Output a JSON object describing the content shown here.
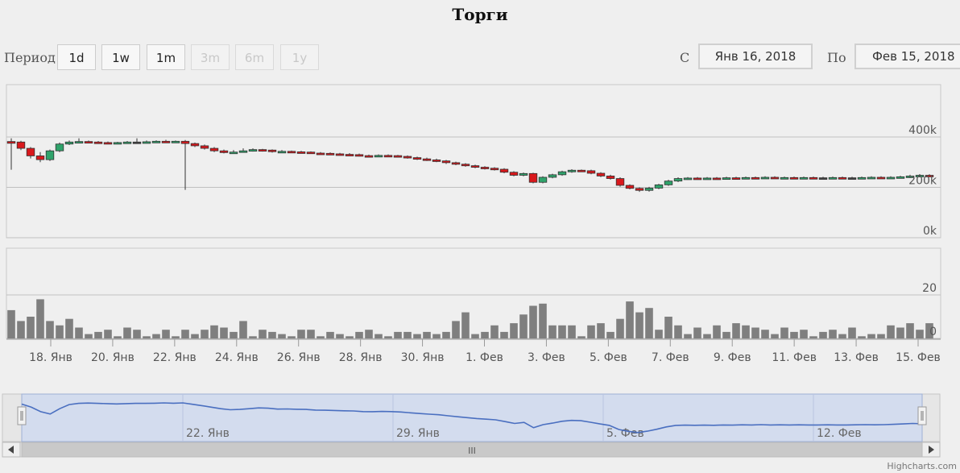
{
  "title": "Торги",
  "range_selector": {
    "label": "Период",
    "buttons": [
      {
        "label": "1d",
        "enabled": true
      },
      {
        "label": "1w",
        "enabled": true
      },
      {
        "label": "1m",
        "enabled": true
      },
      {
        "label": "3m",
        "enabled": false
      },
      {
        "label": "6m",
        "enabled": false
      },
      {
        "label": "1y",
        "enabled": false
      }
    ],
    "from_label": "С",
    "from_value": "Янв 16, 2018",
    "to_label": "По",
    "to_value": "Фев 15, 2018"
  },
  "credits": "Highcharts.com",
  "chart_data": {
    "type": "candlestick",
    "price_axis": {
      "ticks": [
        "0k",
        "200k",
        "400k"
      ],
      "range": [
        0,
        400000
      ],
      "grid": true,
      "position": "right"
    },
    "volume_axis": {
      "ticks": [
        "0",
        "20"
      ],
      "range": [
        0,
        20
      ],
      "grid": true,
      "position": "right"
    },
    "x_ticks": [
      "18. Янв",
      "20. Янв",
      "22. Янв",
      "24. Янв",
      "26. Янв",
      "28. Янв",
      "30. Янв",
      "1. Фев",
      "3. Фев",
      "5. Фев",
      "7. Фев",
      "9. Фев",
      "11. Фев",
      "13. Фев",
      "15. Фев"
    ],
    "colors": {
      "up": "#2fa36b",
      "down": "#d9181c",
      "flat": "#444444",
      "volume": "#7f7f7f",
      "navigator_line": "#4a6fc0",
      "navigator_fill": "#cfd9ee"
    },
    "candles": [
      [
        382000,
        375000,
        395000,
        270000,
        13
      ],
      [
        380000,
        355000,
        385000,
        348000,
        8
      ],
      [
        355000,
        325000,
        360000,
        315000,
        10
      ],
      [
        325000,
        310000,
        340000,
        300000,
        18
      ],
      [
        310000,
        345000,
        350000,
        305000,
        8
      ],
      [
        345000,
        372000,
        378000,
        340000,
        6
      ],
      [
        372000,
        380000,
        386000,
        368000,
        9
      ],
      [
        380000,
        382000,
        395000,
        375000,
        5
      ],
      [
        382000,
        380000,
        386000,
        377000,
        2
      ],
      [
        380000,
        378000,
        384000,
        374000,
        3
      ],
      [
        378000,
        376000,
        382000,
        372000,
        4
      ],
      [
        376000,
        378000,
        381000,
        372000,
        1
      ],
      [
        378000,
        380000,
        384000,
        375000,
        5
      ],
      [
        380000,
        380000,
        395000,
        378000,
        4
      ],
      [
        380000,
        381000,
        386000,
        378000,
        1
      ],
      [
        381000,
        383000,
        387000,
        379000,
        2
      ],
      [
        383000,
        381000,
        389000,
        378000,
        4
      ],
      [
        381000,
        383000,
        386000,
        379000,
        1
      ],
      [
        383000,
        374000,
        388000,
        190000,
        4
      ],
      [
        374000,
        365000,
        378000,
        360000,
        2
      ],
      [
        365000,
        355000,
        370000,
        350000,
        4
      ],
      [
        355000,
        345000,
        360000,
        340000,
        6
      ],
      [
        345000,
        338000,
        350000,
        335000,
        5
      ],
      [
        338000,
        340000,
        348000,
        333000,
        3
      ],
      [
        340000,
        345000,
        355000,
        338000,
        8
      ],
      [
        345000,
        350000,
        355000,
        342000,
        1
      ],
      [
        350000,
        348000,
        353000,
        342000,
        4
      ],
      [
        348000,
        342000,
        351000,
        338000,
        3
      ],
      [
        342000,
        343000,
        348000,
        339000,
        2
      ],
      [
        343000,
        341000,
        346000,
        338000,
        1
      ],
      [
        341000,
        340000,
        345000,
        336000,
        4
      ],
      [
        340000,
        336000,
        343000,
        333000,
        4
      ],
      [
        336000,
        335000,
        340000,
        330000,
        1
      ],
      [
        335000,
        333000,
        339000,
        330000,
        3
      ],
      [
        333000,
        331000,
        337000,
        328000,
        2
      ],
      [
        331000,
        330000,
        336000,
        327000,
        1
      ],
      [
        330000,
        326000,
        334000,
        323000,
        3
      ],
      [
        326000,
        325000,
        330000,
        320000,
        4
      ],
      [
        325000,
        327000,
        331000,
        322000,
        2
      ],
      [
        327000,
        326000,
        331000,
        322000,
        1
      ],
      [
        326000,
        323000,
        329000,
        319000,
        3
      ],
      [
        323000,
        318000,
        327000,
        314000,
        3
      ],
      [
        318000,
        313000,
        322000,
        309000,
        2
      ],
      [
        313000,
        309000,
        318000,
        305000,
        3
      ],
      [
        309000,
        305000,
        314000,
        300000,
        2
      ],
      [
        305000,
        298000,
        309000,
        293000,
        3
      ],
      [
        298000,
        292000,
        302000,
        288000,
        8
      ],
      [
        292000,
        286000,
        296000,
        282000,
        12
      ],
      [
        286000,
        280000,
        290000,
        276000,
        2
      ],
      [
        280000,
        276000,
        284000,
        271000,
        3
      ],
      [
        276000,
        272000,
        280000,
        267000,
        6
      ],
      [
        272000,
        260000,
        276000,
        256000,
        3
      ],
      [
        260000,
        248000,
        264000,
        244000,
        7
      ],
      [
        248000,
        255000,
        259000,
        244000,
        11
      ],
      [
        255000,
        220000,
        258000,
        216000,
        15
      ],
      [
        220000,
        240000,
        244000,
        216000,
        16
      ],
      [
        240000,
        250000,
        254000,
        236000,
        6
      ],
      [
        250000,
        262000,
        266000,
        246000,
        6
      ],
      [
        262000,
        268000,
        272000,
        258000,
        6
      ],
      [
        268000,
        266000,
        271000,
        262000,
        1
      ],
      [
        266000,
        256000,
        270000,
        252000,
        6
      ],
      [
        256000,
        245000,
        260000,
        241000,
        7
      ],
      [
        245000,
        235000,
        250000,
        231000,
        3
      ],
      [
        235000,
        208000,
        240000,
        203000,
        9
      ],
      [
        208000,
        196000,
        212000,
        192000,
        17
      ],
      [
        196000,
        188000,
        200000,
        182000,
        12
      ],
      [
        188000,
        197000,
        202000,
        183000,
        14
      ],
      [
        197000,
        210000,
        214000,
        193000,
        4
      ],
      [
        210000,
        225000,
        230000,
        206000,
        10
      ],
      [
        225000,
        235000,
        240000,
        221000,
        6
      ],
      [
        235000,
        237000,
        241000,
        230000,
        2
      ],
      [
        237000,
        236000,
        241000,
        232000,
        5
      ],
      [
        236000,
        237000,
        241000,
        232000,
        2
      ],
      [
        237000,
        236000,
        241000,
        232000,
        6
      ],
      [
        236000,
        238000,
        242000,
        233000,
        3
      ],
      [
        238000,
        237000,
        242000,
        233000,
        7
      ],
      [
        237000,
        239000,
        243000,
        234000,
        6
      ],
      [
        239000,
        238000,
        243000,
        234000,
        5
      ],
      [
        238000,
        240000,
        244000,
        235000,
        4
      ],
      [
        240000,
        238000,
        244000,
        234000,
        2
      ],
      [
        238000,
        239000,
        243000,
        235000,
        5
      ],
      [
        239000,
        238000,
        243000,
        234000,
        3
      ],
      [
        238000,
        239000,
        243000,
        235000,
        4
      ],
      [
        239000,
        238000,
        243000,
        234000,
        1
      ],
      [
        238000,
        238000,
        242000,
        234000,
        3
      ],
      [
        238000,
        239000,
        243000,
        235000,
        4
      ],
      [
        239000,
        238000,
        243000,
        234000,
        2
      ],
      [
        238000,
        238000,
        242000,
        234000,
        5
      ],
      [
        238000,
        239000,
        243000,
        235000,
        1
      ],
      [
        239000,
        240000,
        244000,
        236000,
        2
      ],
      [
        240000,
        239000,
        244000,
        235000,
        2
      ],
      [
        239000,
        240000,
        244000,
        236000,
        6
      ],
      [
        240000,
        242000,
        246000,
        236000,
        5
      ],
      [
        242000,
        245000,
        250000,
        238000,
        7
      ],
      [
        245000,
        248000,
        253000,
        240000,
        4
      ],
      [
        248000,
        246000,
        252000,
        242000,
        7
      ]
    ]
  },
  "navigator": {
    "labels": [
      "22. Янв",
      "29. Янв",
      "5. Фев",
      "12. Фев"
    ],
    "scrollbar_grip": "III"
  }
}
